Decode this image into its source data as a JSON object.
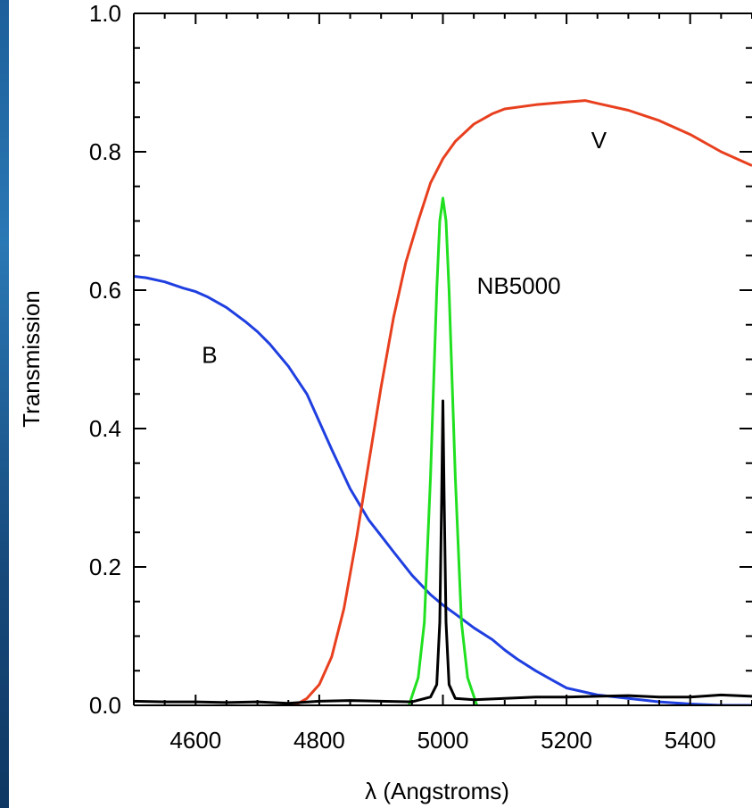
{
  "chart_data": {
    "type": "line",
    "title": "",
    "xlabel": "λ (Angstroms)",
    "ylabel": "Transmission",
    "xlim": [
      4500,
      5500
    ],
    "ylim": [
      0.0,
      1.0
    ],
    "x_ticks": [
      "4600",
      "4800",
      "5000",
      "5200",
      "5400"
    ],
    "y_ticks": [
      "0.0",
      "0.2",
      "0.4",
      "0.6",
      "0.8",
      "1.0"
    ],
    "grid": false,
    "series": [
      {
        "name": "B",
        "color": "#1f3fe0",
        "label_at": [
          4610,
          0.495
        ],
        "points": [
          [
            4500,
            0.62
          ],
          [
            4520,
            0.618
          ],
          [
            4550,
            0.612
          ],
          [
            4580,
            0.603
          ],
          [
            4600,
            0.598
          ],
          [
            4620,
            0.59
          ],
          [
            4650,
            0.575
          ],
          [
            4680,
            0.555
          ],
          [
            4700,
            0.54
          ],
          [
            4720,
            0.522
          ],
          [
            4750,
            0.49
          ],
          [
            4780,
            0.45
          ],
          [
            4800,
            0.41
          ],
          [
            4820,
            0.37
          ],
          [
            4850,
            0.313
          ],
          [
            4880,
            0.268
          ],
          [
            4900,
            0.245
          ],
          [
            4920,
            0.222
          ],
          [
            4950,
            0.188
          ],
          [
            4980,
            0.16
          ],
          [
            5000,
            0.145
          ],
          [
            5020,
            0.132
          ],
          [
            5050,
            0.112
          ],
          [
            5080,
            0.095
          ],
          [
            5100,
            0.08
          ],
          [
            5120,
            0.067
          ],
          [
            5150,
            0.05
          ],
          [
            5180,
            0.035
          ],
          [
            5200,
            0.025
          ],
          [
            5250,
            0.015
          ],
          [
            5300,
            0.01
          ],
          [
            5350,
            0.005
          ],
          [
            5400,
            0.002
          ],
          [
            5450,
            0.0
          ],
          [
            5500,
            0.0
          ]
        ]
      },
      {
        "name": "V",
        "color": "#e8401f",
        "label_at": [
          5240,
          0.805
        ],
        "points": [
          [
            4500,
            -0.02
          ],
          [
            4650,
            -0.015
          ],
          [
            4700,
            -0.01
          ],
          [
            4740,
            -0.005
          ],
          [
            4760,
            0.0
          ],
          [
            4780,
            0.01
          ],
          [
            4800,
            0.03
          ],
          [
            4820,
            0.07
          ],
          [
            4840,
            0.14
          ],
          [
            4860,
            0.24
          ],
          [
            4880,
            0.35
          ],
          [
            4900,
            0.46
          ],
          [
            4920,
            0.56
          ],
          [
            4940,
            0.64
          ],
          [
            4960,
            0.7
          ],
          [
            4980,
            0.755
          ],
          [
            5000,
            0.79
          ],
          [
            5020,
            0.815
          ],
          [
            5050,
            0.84
          ],
          [
            5080,
            0.855
          ],
          [
            5100,
            0.862
          ],
          [
            5150,
            0.868
          ],
          [
            5200,
            0.872
          ],
          [
            5230,
            0.874
          ],
          [
            5250,
            0.87
          ],
          [
            5300,
            0.86
          ],
          [
            5350,
            0.845
          ],
          [
            5400,
            0.825
          ],
          [
            5450,
            0.8
          ],
          [
            5500,
            0.78
          ]
        ]
      },
      {
        "name": "NB5000",
        "color": "#20e020",
        "label_at": [
          5055,
          0.595
        ],
        "points": [
          [
            4945,
            0.0
          ],
          [
            4960,
            0.04
          ],
          [
            4970,
            0.12
          ],
          [
            4980,
            0.33
          ],
          [
            4990,
            0.6
          ],
          [
            4995,
            0.7
          ],
          [
            5000,
            0.733
          ],
          [
            5005,
            0.7
          ],
          [
            5010,
            0.6
          ],
          [
            5020,
            0.33
          ],
          [
            5030,
            0.12
          ],
          [
            5040,
            0.04
          ],
          [
            5055,
            0.0
          ]
        ]
      },
      {
        "name": "",
        "color": "#000000",
        "points": [
          [
            4500,
            0.006
          ],
          [
            4550,
            0.005
          ],
          [
            4600,
            0.005
          ],
          [
            4650,
            0.004
          ],
          [
            4700,
            0.005
          ],
          [
            4750,
            0.003
          ],
          [
            4800,
            0.006
          ],
          [
            4850,
            0.007
          ],
          [
            4900,
            0.006
          ],
          [
            4950,
            0.005
          ],
          [
            4980,
            0.012
          ],
          [
            4990,
            0.03
          ],
          [
            4995,
            0.12
          ],
          [
            4998,
            0.3
          ],
          [
            5000,
            0.44
          ],
          [
            5002,
            0.3
          ],
          [
            5005,
            0.12
          ],
          [
            5010,
            0.03
          ],
          [
            5020,
            0.01
          ],
          [
            5050,
            0.008
          ],
          [
            5100,
            0.01
          ],
          [
            5150,
            0.012
          ],
          [
            5200,
            0.012
          ],
          [
            5250,
            0.013
          ],
          [
            5300,
            0.014
          ],
          [
            5350,
            0.012
          ],
          [
            5400,
            0.012
          ],
          [
            5450,
            0.015
          ],
          [
            5500,
            0.013
          ]
        ]
      }
    ]
  }
}
